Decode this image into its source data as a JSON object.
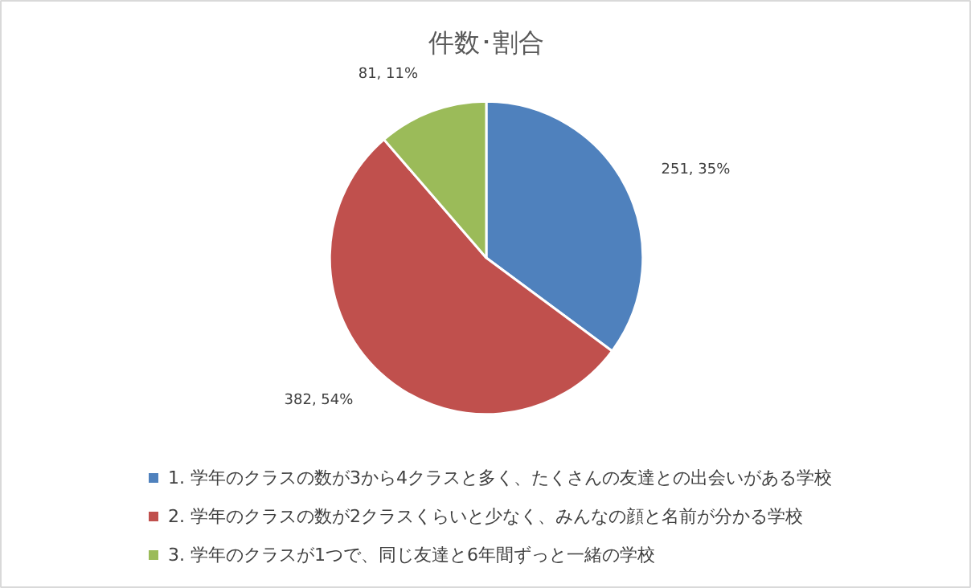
{
  "chart_data": {
    "type": "pie",
    "title": "件数･割合",
    "categories": [
      "1. 学年のクラスの数が3から4クラスと多く、たくさんの友達との出会いがある学校",
      "2. 学年のクラスの数が2クラスくらいと少なく、みんなの顔と名前が分かる学校",
      "3. 学年のクラスが1つで、同じ友達と6年間ずっと一緒の学校"
    ],
    "values": [
      251,
      382,
      81
    ],
    "colors": [
      "#4f81bd",
      "#c0504d",
      "#9bbb59"
    ],
    "value_labels": [
      "251, 35%",
      "382, 54%",
      "81, 11%"
    ],
    "legend": "bottom"
  }
}
